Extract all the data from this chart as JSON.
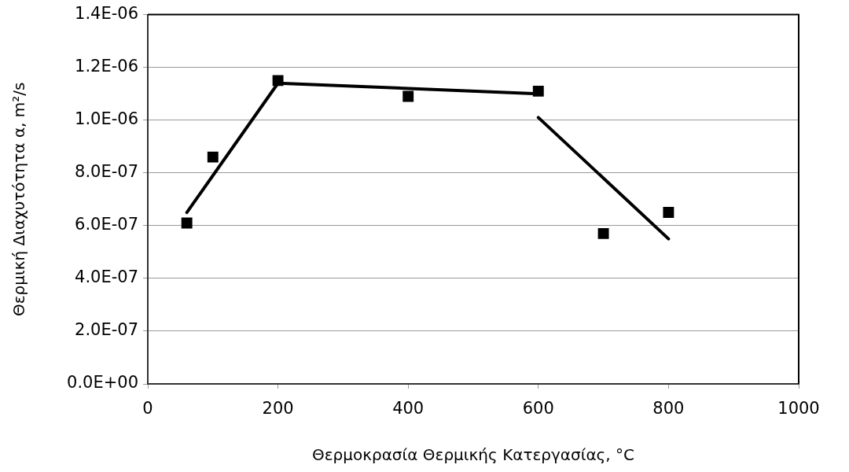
{
  "chart_data": {
    "type": "scatter",
    "xlabel": "Θερμοκρασία Θερμικής Κατεργασίας, °C",
    "ylabel": "Θερμική Διαχυτότητα α, m²/s",
    "xlim": [
      0,
      1000
    ],
    "xticks": [
      0,
      200,
      400,
      600,
      800,
      1000
    ],
    "ylim": [
      0,
      1.4e-06
    ],
    "yticks": [
      {
        "value": 0,
        "label": "0.0E+00"
      },
      {
        "value": 2e-07,
        "label": "2.0E-07"
      },
      {
        "value": 4e-07,
        "label": "4.0E-07"
      },
      {
        "value": 6e-07,
        "label": "6.0E-07"
      },
      {
        "value": 8e-07,
        "label": "8.0E-07"
      },
      {
        "value": 1e-06,
        "label": "1.0E-06"
      },
      {
        "value": 1.2e-06,
        "label": "1.2E-06"
      },
      {
        "value": 1.4e-06,
        "label": "1.4E-06"
      }
    ],
    "grid": "y",
    "marker": "square",
    "series": [
      {
        "color": "#000000",
        "x": [
          60,
          100,
          200,
          400,
          600,
          700,
          800
        ],
        "values": [
          6.1e-07,
          8.6e-07,
          1.15e-06,
          1.09e-06,
          1.11e-06,
          5.7e-07,
          6.5e-07
        ]
      },
      {
        "type": "line",
        "color": "#000000",
        "marker": "none",
        "x": [
          60,
          200,
          600
        ],
        "values": [
          6.5e-07,
          1.14e-06,
          1.1e-06
        ]
      },
      {
        "type": "line",
        "color": "#000000",
        "marker": "none",
        "x": [
          600,
          800
        ],
        "values": [
          1.01e-06,
          5.5e-07
        ]
      }
    ]
  }
}
